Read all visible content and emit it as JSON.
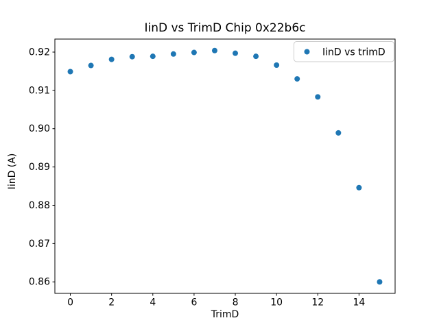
{
  "chart_data": {
    "type": "scatter",
    "title": "IinD vs TrimD Chip 0x22b6c",
    "xlabel": "TrimD",
    "ylabel": "IinD (A)",
    "legend": {
      "position": "upper right",
      "entries": [
        {
          "label": "IinD vs trimD",
          "marker": "circle",
          "color": "#1f77b4"
        }
      ]
    },
    "series": [
      {
        "name": "IinD vs trimD",
        "x": [
          0,
          1,
          2,
          3,
          4,
          5,
          6,
          7,
          8,
          9,
          10,
          11,
          12,
          13,
          14,
          15
        ],
        "y": [
          0.9149,
          0.9165,
          0.9181,
          0.9188,
          0.9189,
          0.9195,
          0.9199,
          0.9204,
          0.9197,
          0.9189,
          0.9166,
          0.913,
          0.9083,
          0.8989,
          0.8846,
          0.86
        ]
      }
    ],
    "marker_color": "#1f77b4",
    "axis_color": "#000000",
    "legend_edge_color": "#cccccc",
    "xlim": [
      -0.75,
      15.75
    ],
    "ylim": [
      0.857,
      0.9234
    ],
    "xticks": [
      0,
      2,
      4,
      6,
      8,
      10,
      12,
      14
    ],
    "xtick_labels": [
      "0",
      "2",
      "4",
      "6",
      "8",
      "10",
      "12",
      "14"
    ],
    "yticks": [
      0.86,
      0.87,
      0.88,
      0.89,
      0.9,
      0.91,
      0.92
    ],
    "ytick_labels": [
      "0.86",
      "0.87",
      "0.88",
      "0.89",
      "0.90",
      "0.91",
      "0.92"
    ],
    "grid": false
  }
}
